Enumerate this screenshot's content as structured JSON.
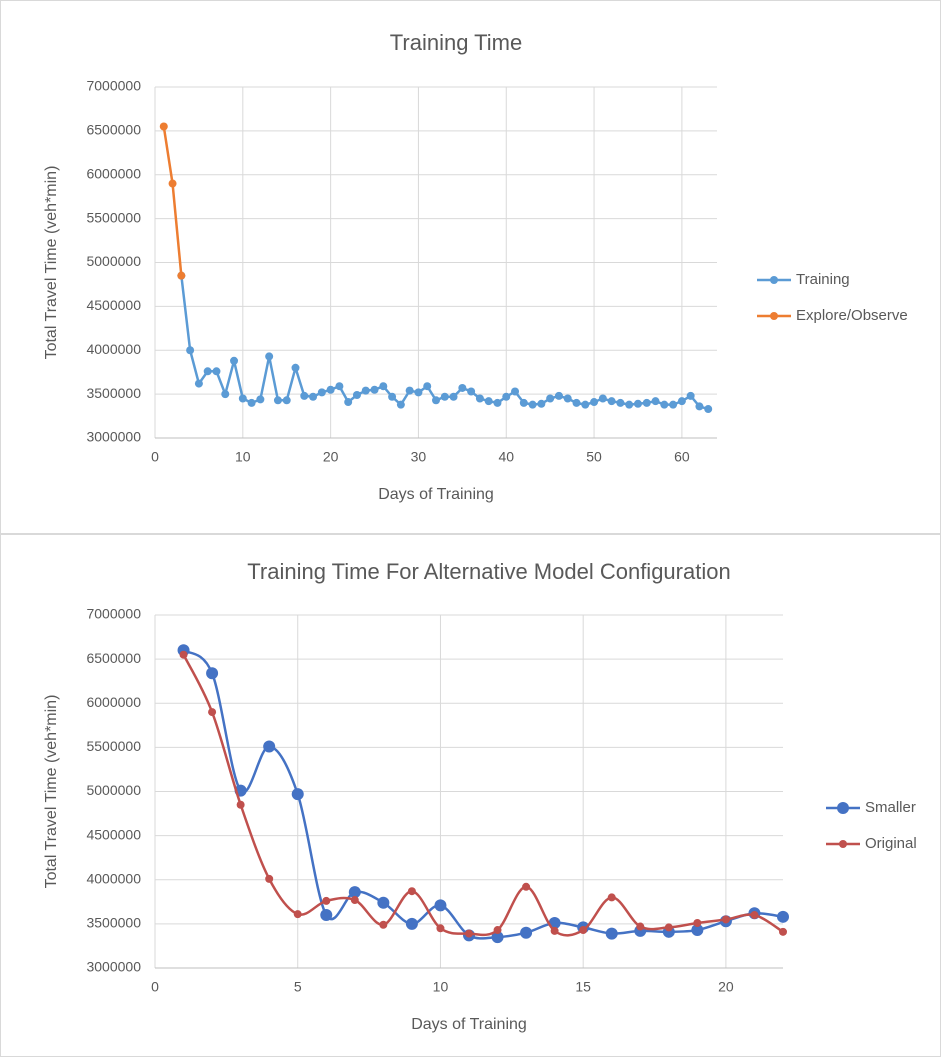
{
  "chart_data": [
    {
      "type": "line",
      "title": "Training Time",
      "x_label": "Days of Training",
      "y_label": "Total Travel Time (veh*min)",
      "xlim": [
        0,
        64
      ],
      "xticks": [
        0,
        10,
        20,
        30,
        40,
        50,
        60
      ],
      "ylim": [
        3000000,
        7000000
      ],
      "yticks": [
        3000000,
        3500000,
        4000000,
        4500000,
        5000000,
        5500000,
        6000000,
        6500000,
        7000000
      ],
      "grid": true,
      "legend": "right",
      "smooth": false,
      "series": [
        {
          "name": "Training",
          "color": "#5b9bd5",
          "x": [
            3,
            4,
            5,
            6,
            7,
            8,
            9,
            10,
            11,
            12,
            13,
            14,
            15,
            16,
            17,
            18,
            19,
            20,
            21,
            22,
            23,
            24,
            25,
            26,
            27,
            28,
            29,
            30,
            31,
            32,
            33,
            34,
            35,
            36,
            37,
            38,
            39,
            40,
            41,
            42,
            43,
            44,
            45,
            46,
            47,
            48,
            49,
            50,
            51,
            52,
            53,
            54,
            55,
            56,
            57,
            58,
            59,
            60,
            61,
            62,
            63
          ],
          "values": [
            4850000,
            4000000,
            3620000,
            3760000,
            3760000,
            3500000,
            3880000,
            3450000,
            3400000,
            3440000,
            3930000,
            3430000,
            3430000,
            3800000,
            3480000,
            3470000,
            3520000,
            3550000,
            3590000,
            3410000,
            3490000,
            3540000,
            3550000,
            3590000,
            3470000,
            3380000,
            3540000,
            3520000,
            3590000,
            3430000,
            3470000,
            3470000,
            3570000,
            3530000,
            3450000,
            3420000,
            3400000,
            3470000,
            3530000,
            3400000,
            3380000,
            3390000,
            3450000,
            3480000,
            3450000,
            3400000,
            3380000,
            3410000,
            3450000,
            3420000,
            3400000,
            3380000,
            3390000,
            3400000,
            3420000,
            3380000,
            3380000,
            3420000,
            3480000,
            3360000,
            3330000
          ]
        },
        {
          "name": "Explore/Observe",
          "color": "#ed7d31",
          "x": [
            1,
            2,
            3
          ],
          "values": [
            6550000,
            5900000,
            4850000
          ]
        }
      ]
    },
    {
      "type": "line",
      "title": "Training Time For Alternative Model Configuration",
      "x_label": "Days of Training",
      "y_label": "Total Travel Time (veh*min)",
      "xlim": [
        0,
        22
      ],
      "xticks": [
        0,
        5,
        10,
        15,
        20
      ],
      "ylim": [
        3000000,
        7000000
      ],
      "yticks": [
        3000000,
        3500000,
        4000000,
        4500000,
        5000000,
        5500000,
        6000000,
        6500000,
        7000000
      ],
      "grid": true,
      "legend": "right",
      "smooth": true,
      "series": [
        {
          "name": "Smaller",
          "color": "#4472c4",
          "x": [
            1,
            2,
            3,
            4,
            5,
            6,
            7,
            8,
            9,
            10,
            11,
            12,
            13,
            14,
            15,
            16,
            17,
            18,
            19,
            20,
            21,
            22
          ],
          "values": [
            6600000,
            6340000,
            5010000,
            5510000,
            4970000,
            3600000,
            3860000,
            3740000,
            3500000,
            3710000,
            3370000,
            3350000,
            3400000,
            3510000,
            3460000,
            3390000,
            3420000,
            3410000,
            3430000,
            3530000,
            3620000,
            3580000
          ]
        },
        {
          "name": "Original",
          "color": "#c0504d",
          "x": [
            1,
            2,
            3,
            4,
            5,
            6,
            7,
            8,
            9,
            10,
            11,
            12,
            13,
            14,
            15,
            16,
            17,
            18,
            19,
            20,
            21,
            22
          ],
          "values": [
            6550000,
            5900000,
            4850000,
            4010000,
            3610000,
            3760000,
            3770000,
            3490000,
            3870000,
            3450000,
            3390000,
            3430000,
            3920000,
            3420000,
            3430000,
            3800000,
            3470000,
            3460000,
            3510000,
            3550000,
            3600000,
            3410000
          ]
        }
      ]
    }
  ]
}
